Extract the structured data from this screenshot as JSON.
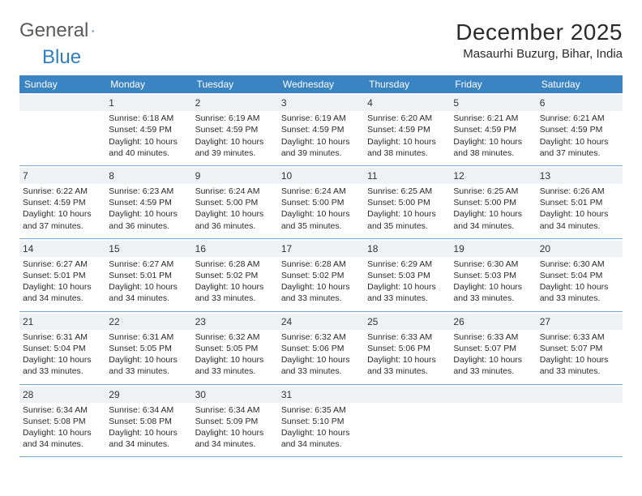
{
  "brand": {
    "part1": "General",
    "part2": "Blue"
  },
  "title": "December 2025",
  "location": "Masaurhi Buzurg, Bihar, India",
  "colors": {
    "header_bg": "#3b84c4",
    "header_text": "#ffffff",
    "daynum_bg": "#eef2f5",
    "border": "#7aa9d3",
    "text": "#2a2a2a",
    "brand_blue": "#2f7ec0"
  },
  "weekdays": [
    "Sunday",
    "Monday",
    "Tuesday",
    "Wednesday",
    "Thursday",
    "Friday",
    "Saturday"
  ],
  "weeks": [
    [
      {
        "day": "",
        "sunrise": "",
        "sunset": "",
        "daylight": ""
      },
      {
        "day": "1",
        "sunrise": "6:18 AM",
        "sunset": "4:59 PM",
        "daylight": "10 hours and 40 minutes."
      },
      {
        "day": "2",
        "sunrise": "6:19 AM",
        "sunset": "4:59 PM",
        "daylight": "10 hours and 39 minutes."
      },
      {
        "day": "3",
        "sunrise": "6:19 AM",
        "sunset": "4:59 PM",
        "daylight": "10 hours and 39 minutes."
      },
      {
        "day": "4",
        "sunrise": "6:20 AM",
        "sunset": "4:59 PM",
        "daylight": "10 hours and 38 minutes."
      },
      {
        "day": "5",
        "sunrise": "6:21 AM",
        "sunset": "4:59 PM",
        "daylight": "10 hours and 38 minutes."
      },
      {
        "day": "6",
        "sunrise": "6:21 AM",
        "sunset": "4:59 PM",
        "daylight": "10 hours and 37 minutes."
      }
    ],
    [
      {
        "day": "7",
        "sunrise": "6:22 AM",
        "sunset": "4:59 PM",
        "daylight": "10 hours and 37 minutes."
      },
      {
        "day": "8",
        "sunrise": "6:23 AM",
        "sunset": "4:59 PM",
        "daylight": "10 hours and 36 minutes."
      },
      {
        "day": "9",
        "sunrise": "6:24 AM",
        "sunset": "5:00 PM",
        "daylight": "10 hours and 36 minutes."
      },
      {
        "day": "10",
        "sunrise": "6:24 AM",
        "sunset": "5:00 PM",
        "daylight": "10 hours and 35 minutes."
      },
      {
        "day": "11",
        "sunrise": "6:25 AM",
        "sunset": "5:00 PM",
        "daylight": "10 hours and 35 minutes."
      },
      {
        "day": "12",
        "sunrise": "6:25 AM",
        "sunset": "5:00 PM",
        "daylight": "10 hours and 34 minutes."
      },
      {
        "day": "13",
        "sunrise": "6:26 AM",
        "sunset": "5:01 PM",
        "daylight": "10 hours and 34 minutes."
      }
    ],
    [
      {
        "day": "14",
        "sunrise": "6:27 AM",
        "sunset": "5:01 PM",
        "daylight": "10 hours and 34 minutes."
      },
      {
        "day": "15",
        "sunrise": "6:27 AM",
        "sunset": "5:01 PM",
        "daylight": "10 hours and 34 minutes."
      },
      {
        "day": "16",
        "sunrise": "6:28 AM",
        "sunset": "5:02 PM",
        "daylight": "10 hours and 33 minutes."
      },
      {
        "day": "17",
        "sunrise": "6:28 AM",
        "sunset": "5:02 PM",
        "daylight": "10 hours and 33 minutes."
      },
      {
        "day": "18",
        "sunrise": "6:29 AM",
        "sunset": "5:03 PM",
        "daylight": "10 hours and 33 minutes."
      },
      {
        "day": "19",
        "sunrise": "6:30 AM",
        "sunset": "5:03 PM",
        "daylight": "10 hours and 33 minutes."
      },
      {
        "day": "20",
        "sunrise": "6:30 AM",
        "sunset": "5:04 PM",
        "daylight": "10 hours and 33 minutes."
      }
    ],
    [
      {
        "day": "21",
        "sunrise": "6:31 AM",
        "sunset": "5:04 PM",
        "daylight": "10 hours and 33 minutes."
      },
      {
        "day": "22",
        "sunrise": "6:31 AM",
        "sunset": "5:05 PM",
        "daylight": "10 hours and 33 minutes."
      },
      {
        "day": "23",
        "sunrise": "6:32 AM",
        "sunset": "5:05 PM",
        "daylight": "10 hours and 33 minutes."
      },
      {
        "day": "24",
        "sunrise": "6:32 AM",
        "sunset": "5:06 PM",
        "daylight": "10 hours and 33 minutes."
      },
      {
        "day": "25",
        "sunrise": "6:33 AM",
        "sunset": "5:06 PM",
        "daylight": "10 hours and 33 minutes."
      },
      {
        "day": "26",
        "sunrise": "6:33 AM",
        "sunset": "5:07 PM",
        "daylight": "10 hours and 33 minutes."
      },
      {
        "day": "27",
        "sunrise": "6:33 AM",
        "sunset": "5:07 PM",
        "daylight": "10 hours and 33 minutes."
      }
    ],
    [
      {
        "day": "28",
        "sunrise": "6:34 AM",
        "sunset": "5:08 PM",
        "daylight": "10 hours and 34 minutes."
      },
      {
        "day": "29",
        "sunrise": "6:34 AM",
        "sunset": "5:08 PM",
        "daylight": "10 hours and 34 minutes."
      },
      {
        "day": "30",
        "sunrise": "6:34 AM",
        "sunset": "5:09 PM",
        "daylight": "10 hours and 34 minutes."
      },
      {
        "day": "31",
        "sunrise": "6:35 AM",
        "sunset": "5:10 PM",
        "daylight": "10 hours and 34 minutes."
      },
      {
        "day": "",
        "sunrise": "",
        "sunset": "",
        "daylight": ""
      },
      {
        "day": "",
        "sunrise": "",
        "sunset": "",
        "daylight": ""
      },
      {
        "day": "",
        "sunrise": "",
        "sunset": "",
        "daylight": ""
      }
    ]
  ],
  "labels": {
    "sunrise": "Sunrise: ",
    "sunset": "Sunset: ",
    "daylight": "Daylight: "
  }
}
